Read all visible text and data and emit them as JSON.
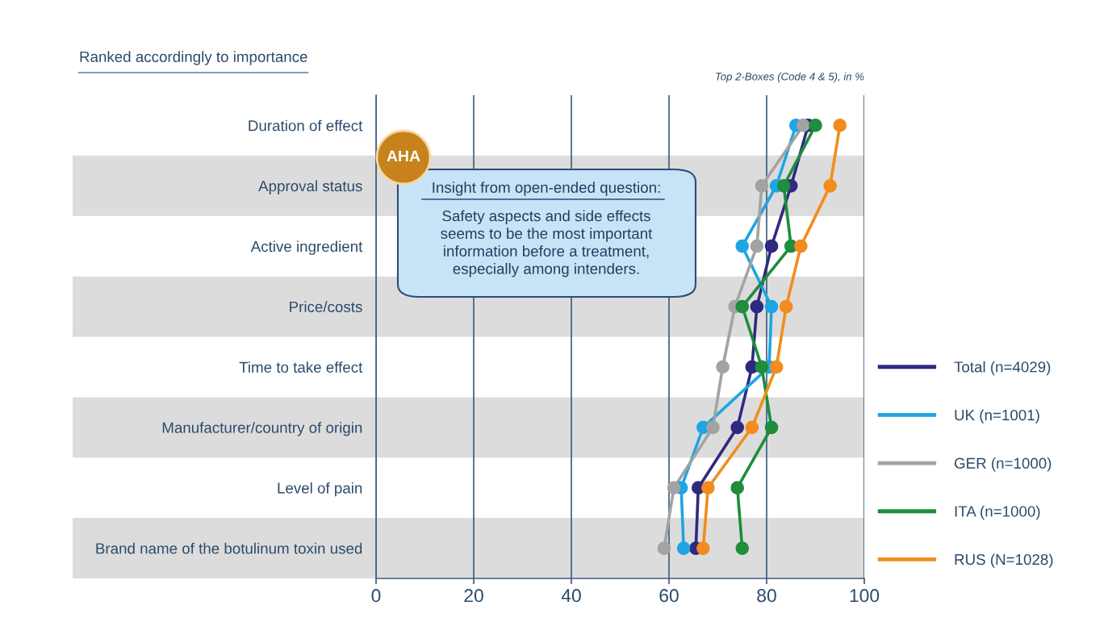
{
  "chart_data": {
    "type": "line",
    "orientation": "horizontal",
    "title": "Ranked accordingly to importance",
    "annotations": [
      "Top 2-Boxes (Code 4 & 5), in %",
      "AHA",
      "Insight from open-ended question:",
      "Safety aspects and side effects\nseems to be the most important\ninformation before a treatment,\nespecially among intenders."
    ],
    "categories": [
      "Duration of effect",
      "Approval status",
      "Active ingredient",
      "Price/costs",
      "Time to take effect",
      "Manufacturer/country of origin",
      "Level of pain",
      "Brand name of the botulinum toxin used"
    ],
    "series": [
      {
        "name": "Total (n=4029)",
        "color": "#2e2a80",
        "values": [
          88.5,
          85,
          81,
          78,
          77,
          74,
          66,
          65.5
        ]
      },
      {
        "name": "UK (n=1001)",
        "color": "#1fa5e3",
        "values": [
          86,
          82,
          75,
          81,
          80.5,
          67,
          62.5,
          63
        ]
      },
      {
        "name": "GER (n=1000)",
        "color": "#a3a3a3",
        "values": [
          87.5,
          79,
          78,
          73.5,
          71,
          69,
          61,
          59
        ]
      },
      {
        "name": "ITA (n=1000)",
        "color": "#1e8d3c",
        "values": [
          90,
          83.5,
          85,
          75,
          79,
          81,
          74,
          75
        ]
      },
      {
        "name": "RUS (N=1028)",
        "color": "#f28c1e",
        "values": [
          95,
          93,
          87,
          84,
          82,
          77,
          68,
          67
        ]
      }
    ],
    "xlim": [
      0,
      100
    ],
    "xticks": [
      0,
      20,
      40,
      60,
      80,
      100
    ],
    "bands": [
      {
        "axis": "y",
        "from": "Approval status",
        "to": "Approval status",
        "color": "#dcdcdc"
      },
      {
        "axis": "y",
        "from": "Price/costs",
        "to": "Price/costs",
        "color": "#dcdcdc"
      },
      {
        "axis": "y",
        "from": "Manufacturer/country of origin",
        "to": "Manufacturer/country of origin",
        "color": "#dcdcdc"
      },
      {
        "axis": "y",
        "from": "Brand name of the botulinum toxin used",
        "to": "Brand name of the botulinum toxin used",
        "color": "#dcdcdc"
      }
    ],
    "grid": "x",
    "legend": "right",
    "marker": "circle",
    "line_style": "solid"
  }
}
